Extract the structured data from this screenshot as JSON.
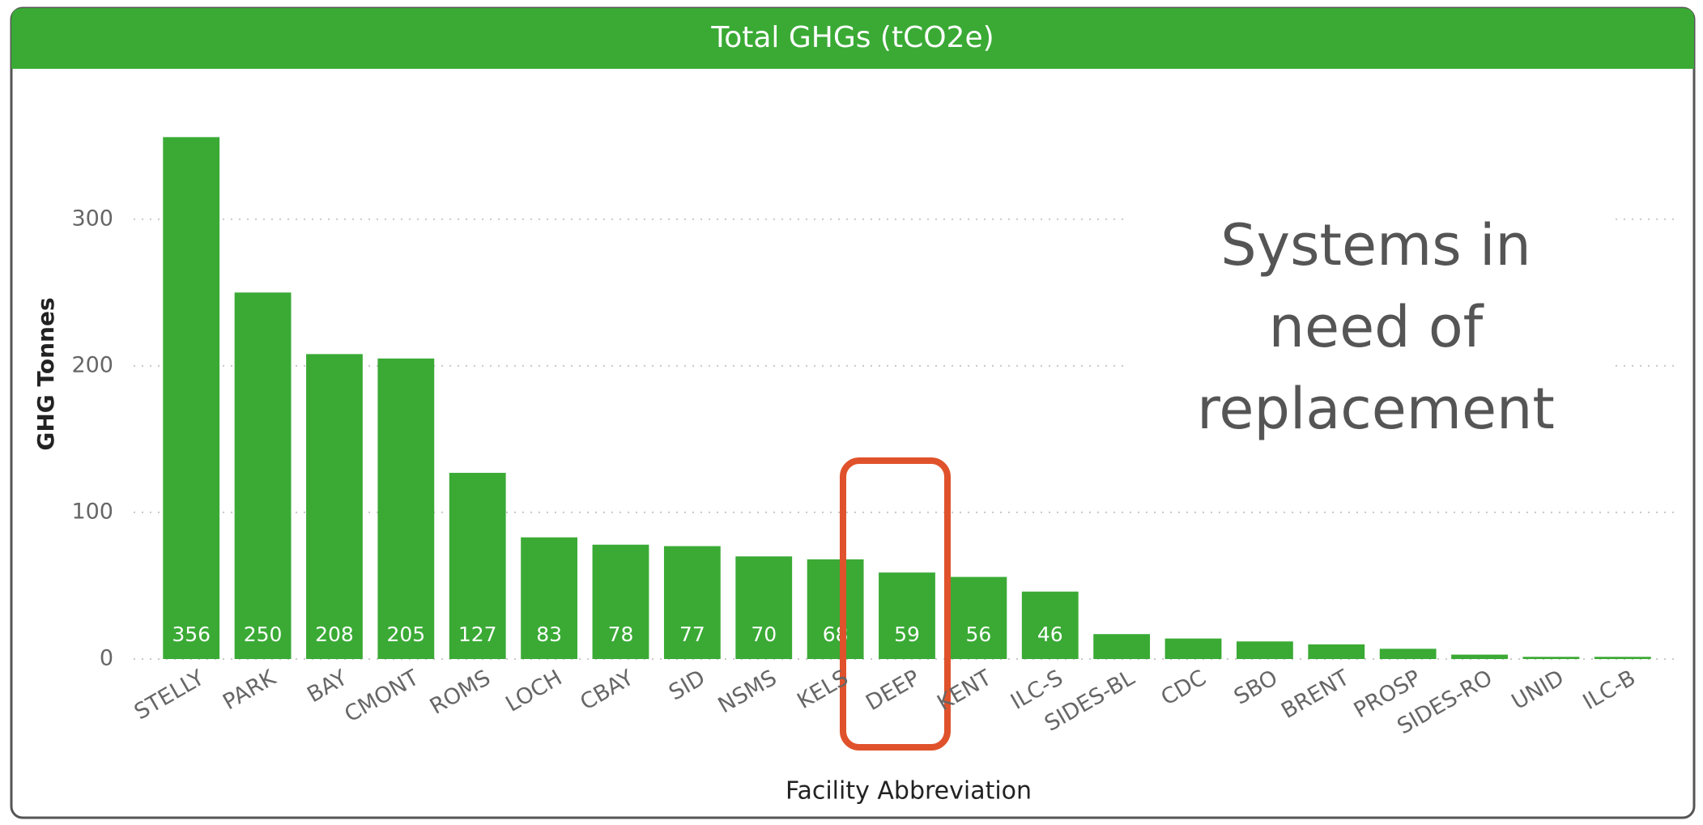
{
  "chart_data": {
    "type": "bar",
    "title": "Total GHGs (tCO2e)",
    "x_label": "Facility Abbreviation",
    "y_label": "GHG Tonnes",
    "annotation": [
      "Systems in",
      "need of",
      "replacement"
    ],
    "categories": [
      "STELLY",
      "PARK",
      "BAY",
      "CMONT",
      "ROMS",
      "LOCH",
      "CBAY",
      "SID",
      "NSMS",
      "KELS",
      "DEEP",
      "KENT",
      "ILC-S",
      "SIDES-BL",
      "CDC",
      "SBO",
      "BRENT",
      "PROSP",
      "SIDES-RO",
      "UNID",
      "ILC-B"
    ],
    "values": [
      356,
      250,
      208,
      205,
      127,
      83,
      78,
      77,
      70,
      68,
      59,
      56,
      46,
      17,
      14,
      12,
      10,
      7,
      3,
      1.5,
      1.5
    ],
    "value_labels": [
      356,
      250,
      208,
      205,
      127,
      83,
      78,
      77,
      70,
      68,
      59,
      56,
      46,
      null,
      null,
      null,
      null,
      null,
      null,
      null,
      null
    ],
    "color": "#3aaa35",
    "ylim": [
      0,
      370
    ],
    "yticks": [
      0,
      100,
      200,
      300
    ],
    "grid": true
  }
}
